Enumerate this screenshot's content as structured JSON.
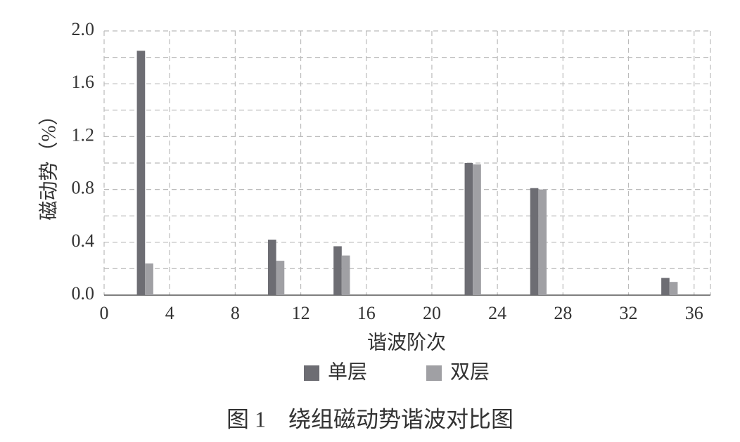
{
  "chart_data": {
    "type": "bar",
    "caption": "图 1　绕组磁动势谐波对比图",
    "x_label": "谐波阶次",
    "y_label": "磁动势（%）",
    "x": [
      2,
      10,
      14,
      22,
      26,
      34
    ],
    "series": [
      {
        "name": "单层",
        "color": "#6d6d73",
        "values": [
          1.85,
          0.42,
          0.37,
          1.0,
          0.81,
          0.13
        ]
      },
      {
        "name": "双层",
        "color": "#a0a0a4",
        "values": [
          0.24,
          0.26,
          0.3,
          0.99,
          0.8,
          0.1
        ]
      }
    ],
    "xlim": [
      0,
      37
    ],
    "xticks": [
      0,
      4,
      8,
      12,
      16,
      20,
      24,
      28,
      32,
      36
    ],
    "ylim": [
      0,
      2
    ],
    "yticks": [
      {
        "value": 0,
        "label": "0.0"
      },
      {
        "value": 0.4,
        "label": "0.4"
      },
      {
        "value": 0.8,
        "label": "0.8"
      },
      {
        "value": 1.2,
        "label": "1.2"
      },
      {
        "value": 1.6,
        "label": "1.6"
      },
      {
        "value": 2,
        "label": "2.0"
      }
    ],
    "y_minor_ticks": [
      0.2,
      0.6,
      1.0,
      1.4,
      1.8
    ],
    "grid": true,
    "legend": "bottom"
  }
}
